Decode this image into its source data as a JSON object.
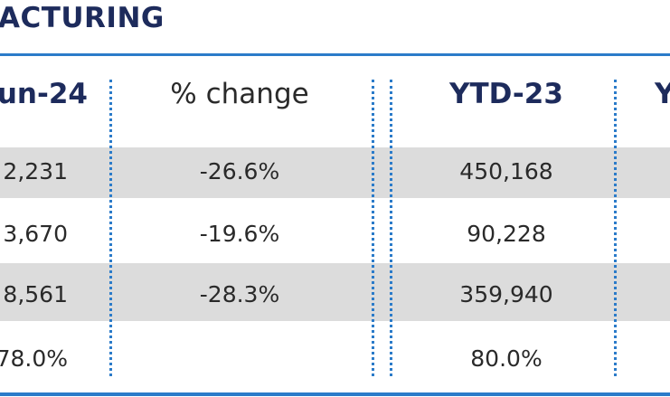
{
  "header": {
    "title": "ACTURING"
  },
  "table": {
    "columns": [
      "un-24",
      "% change",
      "YTD-23",
      "Y"
    ],
    "rows": [
      [
        "2,231",
        "-26.6%",
        "450,168"
      ],
      [
        "3,670",
        "-19.6%",
        "90,228"
      ],
      [
        "8,561",
        "-28.3%",
        "359,940"
      ],
      [
        "78.0%",
        null,
        "80.0%"
      ]
    ]
  }
}
